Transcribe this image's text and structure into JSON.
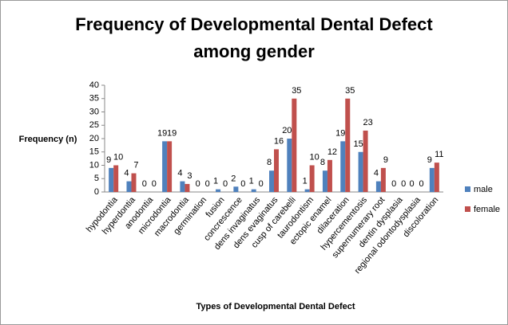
{
  "chart_data": {
    "type": "bar",
    "title": "Frequency of Developmental Dental Defect among gender",
    "x_label": "Types of Developmental Dental Defect",
    "y_label": "Frequency (n)",
    "categories": [
      "hypodontia",
      "hyperdontia",
      "anodontia",
      "microdontia",
      "macrodontia",
      "germination",
      "fusion",
      "concrescence",
      "dens invaginatus",
      "dens evaginatus",
      "cusp of carebelli",
      "taurodontism",
      "ectopic enamel",
      "dilaceration",
      "hypercementosis",
      "supernumerary root",
      "dentin dysplasia",
      "regional odontodysplasia",
      "discoloration"
    ],
    "series": [
      {
        "name": "male",
        "color": "#4f81bd",
        "values": [
          9,
          4,
          0,
          19,
          4,
          0,
          1,
          2,
          1,
          8,
          20,
          1,
          8,
          19,
          15,
          4,
          0,
          0,
          9
        ]
      },
      {
        "name": "female",
        "color": "#c0504d",
        "values": [
          10,
          7,
          0,
          19,
          3,
          0,
          0,
          0,
          0,
          16,
          35,
          10,
          12,
          35,
          23,
          9,
          0,
          0,
          11
        ]
      }
    ],
    "ylim": [
      0,
      40
    ],
    "yticks": [
      0,
      5,
      10,
      15,
      20,
      25,
      30,
      35,
      40
    ],
    "legend": "right"
  }
}
